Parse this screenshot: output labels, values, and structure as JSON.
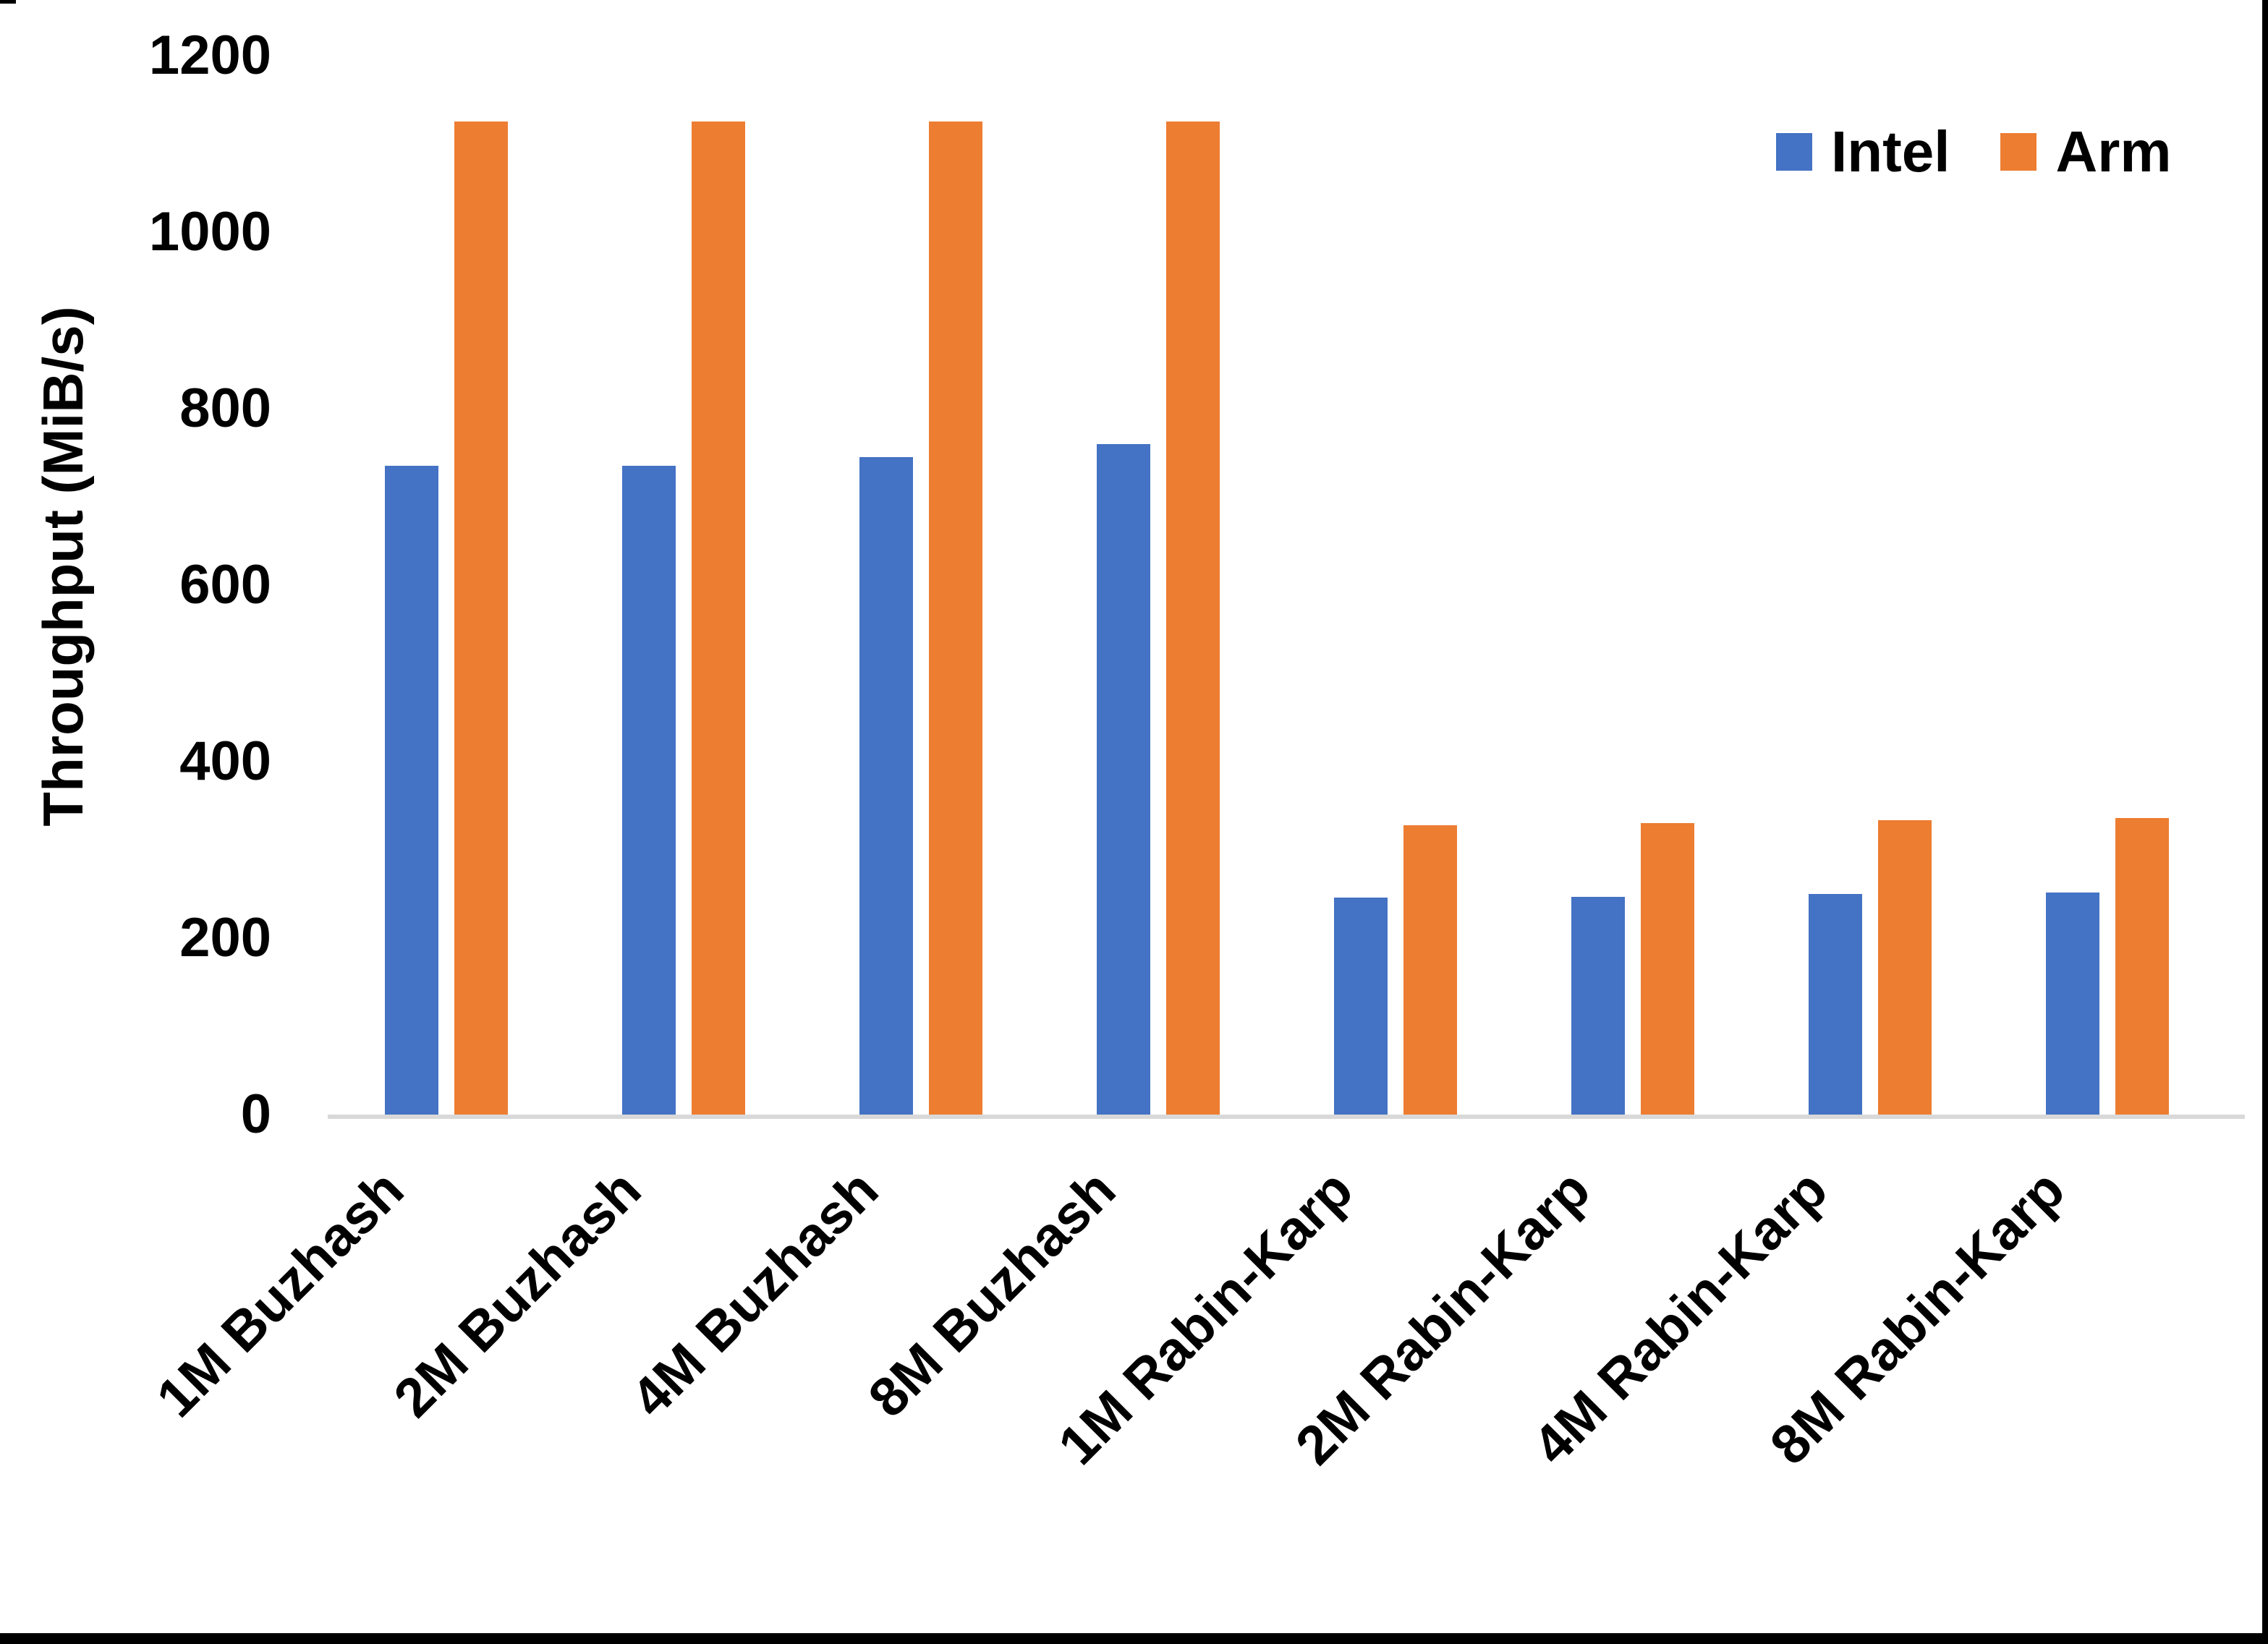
{
  "chart_data": {
    "type": "bar",
    "title": "",
    "xlabel": "",
    "ylabel": "Throughput (MiB/s)",
    "ylim": [
      0,
      1200
    ],
    "yticks": [
      0,
      200,
      400,
      600,
      800,
      1000,
      1200
    ],
    "grid": false,
    "legend_position": "top-right",
    "axis_line_color": "#D9D9D9",
    "categories": [
      "1M Buzhash",
      "2M Buzhash",
      "4M Buzhash",
      "8M Buzhash",
      "1M Rabin-Karp",
      "2M Rabin-Karp",
      "4M Rabin-Karp",
      "8M Rabin-Karp"
    ],
    "series": [
      {
        "name": "Intel",
        "color": "#4472C4",
        "values": [
          735,
          735,
          745,
          760,
          246,
          247,
          250,
          252
        ]
      },
      {
        "name": "Arm",
        "color": "#ED7D31",
        "values": [
          1125,
          1125,
          1125,
          1125,
          328,
          330,
          334,
          336
        ]
      }
    ]
  }
}
